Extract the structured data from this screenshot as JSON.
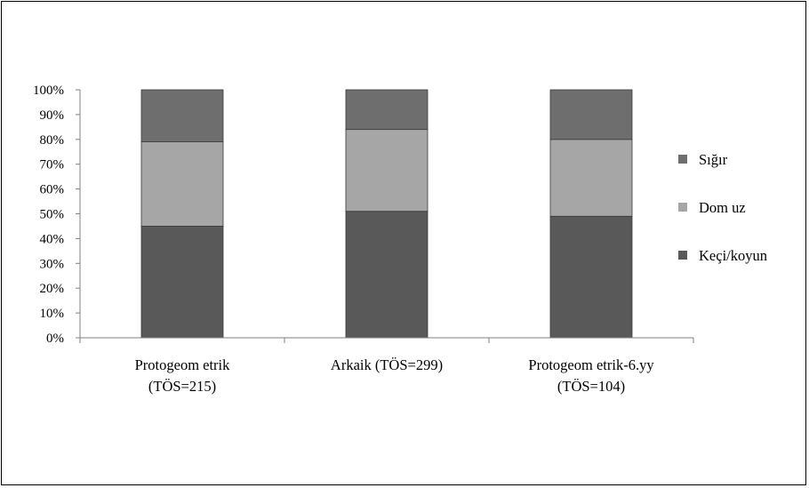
{
  "chart_data": {
    "type": "bar",
    "stacked": true,
    "percent": true,
    "categories": [
      [
        "Protogeom etrik",
        "(TÖS=215)"
      ],
      [
        "Arkaik (TÖS=299)"
      ],
      [
        "Protogeom etrik-6.yy",
        "(TÖS=104)"
      ]
    ],
    "series": [
      {
        "name": "Keçi/koyun",
        "color": "#595959",
        "values": [
          45,
          51,
          49
        ]
      },
      {
        "name": "Domuz",
        "color": "#a6a6a6",
        "values": [
          34,
          33,
          31
        ]
      },
      {
        "name": "Sığır",
        "color": "#6e6e6e",
        "values": [
          21,
          16,
          20
        ]
      }
    ],
    "legend_labels": [
      "Sığır",
      "Dom uz",
      "Keçi/koyun"
    ],
    "legend_order": [
      2,
      1,
      0
    ],
    "legend_position": "right",
    "yticks": [
      "0%",
      "10%",
      "20%",
      "30%",
      "40%",
      "50%",
      "60%",
      "70%",
      "80%",
      "90%",
      "100%"
    ],
    "ylim": [
      0,
      100
    ],
    "grid": false,
    "title": "",
    "xlabel": "",
    "ylabel": ""
  }
}
